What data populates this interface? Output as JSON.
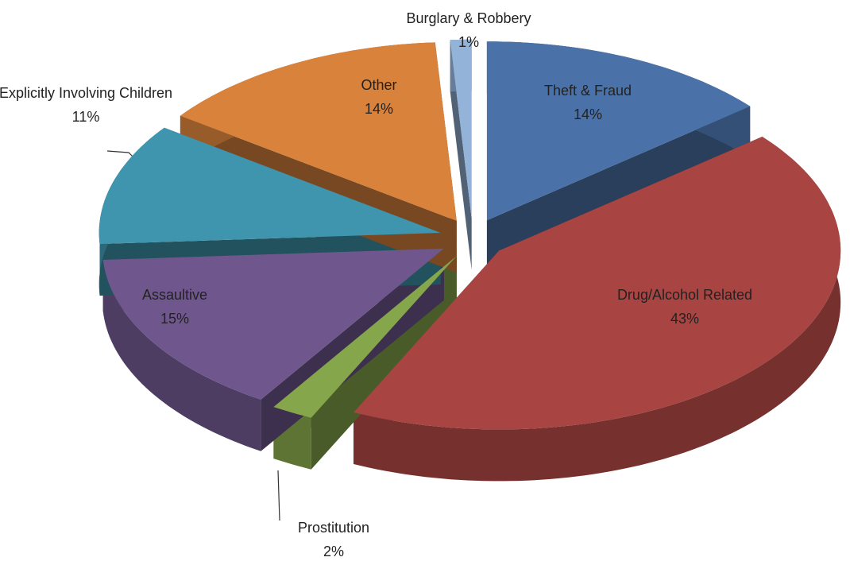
{
  "chart_data": {
    "type": "pie",
    "categories": [
      "Theft & Fraud",
      "Drug/Alcohol Related",
      "Prostitution",
      "Assaultive",
      "Explicitly Involving Children",
      "Other",
      "Burglary & Robbery"
    ],
    "values": [
      14,
      43,
      2,
      15,
      11,
      14,
      1
    ],
    "value_labels": [
      "14%",
      "43%",
      "2%",
      "15%",
      "11%",
      "14%",
      "1%"
    ],
    "colors": [
      "#4a72a8",
      "#a84442",
      "#86a64c",
      "#6f578e",
      "#3f95ad",
      "#d9823c",
      "#94b3d9"
    ]
  }
}
